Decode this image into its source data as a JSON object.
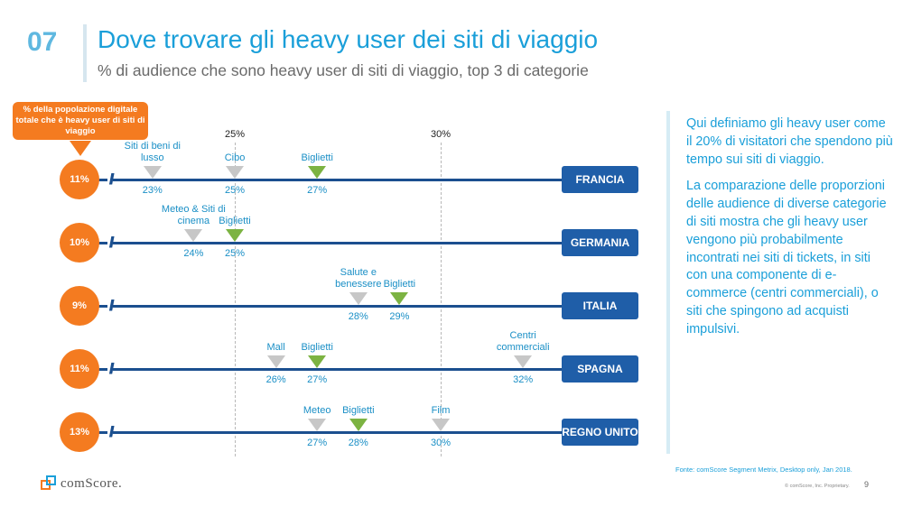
{
  "header": {
    "number": "07",
    "title": "Dove trovare gli heavy user dei siti di viaggio",
    "subtitle": "% di audience che sono heavy user di siti di viaggio, top 3 di categorie"
  },
  "population_box": "% della popolazione digitale totale che è heavy user di siti di viaggio",
  "axis": {
    "label_25": "25%",
    "label_30": "30%"
  },
  "rows": [
    {
      "pct": "11%",
      "country": "FRANCIA",
      "markers": [
        {
          "label": "Siti di beni di lusso",
          "value": "23%",
          "highlight": false
        },
        {
          "label": "Cibo",
          "value": "25%",
          "highlight": false
        },
        {
          "label": "Biglietti",
          "value": "27%",
          "highlight": true
        }
      ]
    },
    {
      "pct": "10%",
      "country": "GERMANIA",
      "markers": [
        {
          "label": "Meteo & Siti di cinema",
          "value": "24%",
          "highlight": false
        },
        {
          "label": "Biglietti",
          "value": "25%",
          "highlight": true
        }
      ]
    },
    {
      "pct": "9%",
      "country": "ITALIA",
      "markers": [
        {
          "label": "Salute e benessere",
          "value": "28%",
          "highlight": false
        },
        {
          "label": "Biglietti",
          "value": "29%",
          "highlight": true
        }
      ]
    },
    {
      "pct": "11%",
      "country": "SPAGNA",
      "markers": [
        {
          "label": "Mall",
          "value": "26%",
          "highlight": false
        },
        {
          "label": "Biglietti",
          "value": "27%",
          "highlight": true
        },
        {
          "label": "Centri commerciali",
          "value": "32%",
          "highlight": false
        }
      ]
    },
    {
      "pct": "13%",
      "country": "REGNO UNITO",
      "markers": [
        {
          "label": "Meteo",
          "value": "27%",
          "highlight": false
        },
        {
          "label": "Biglietti",
          "value": "28%",
          "highlight": true
        },
        {
          "label": "Film",
          "value": "30%",
          "highlight": false
        }
      ]
    }
  ],
  "sidebar": {
    "p1": "Qui definiamo gli heavy user come il 20% di visitatori che spendono più tempo sui siti di viaggio.",
    "p2": "La comparazione delle proporzioni delle audience di diverse categorie di siti mostra che gli heavy user vengono più probabilmente incontrati nei siti di tickets, in siti con una componente di e-commerce (centri commerciali), o siti che spingono ad acquisti impulsivi."
  },
  "footer": {
    "source": "Fonte: comScore Segment Metrix, Desktop only, Jan 2018.",
    "copyright": "© comScore, Inc. Proprietary.",
    "page": "9",
    "logo_text": "comScore."
  },
  "colors": {
    "accent": "#1a9fd9",
    "orange": "#f47b20",
    "navy": "#1f5ea8",
    "green": "#7cb342",
    "gray": "#c7c7c7"
  }
}
